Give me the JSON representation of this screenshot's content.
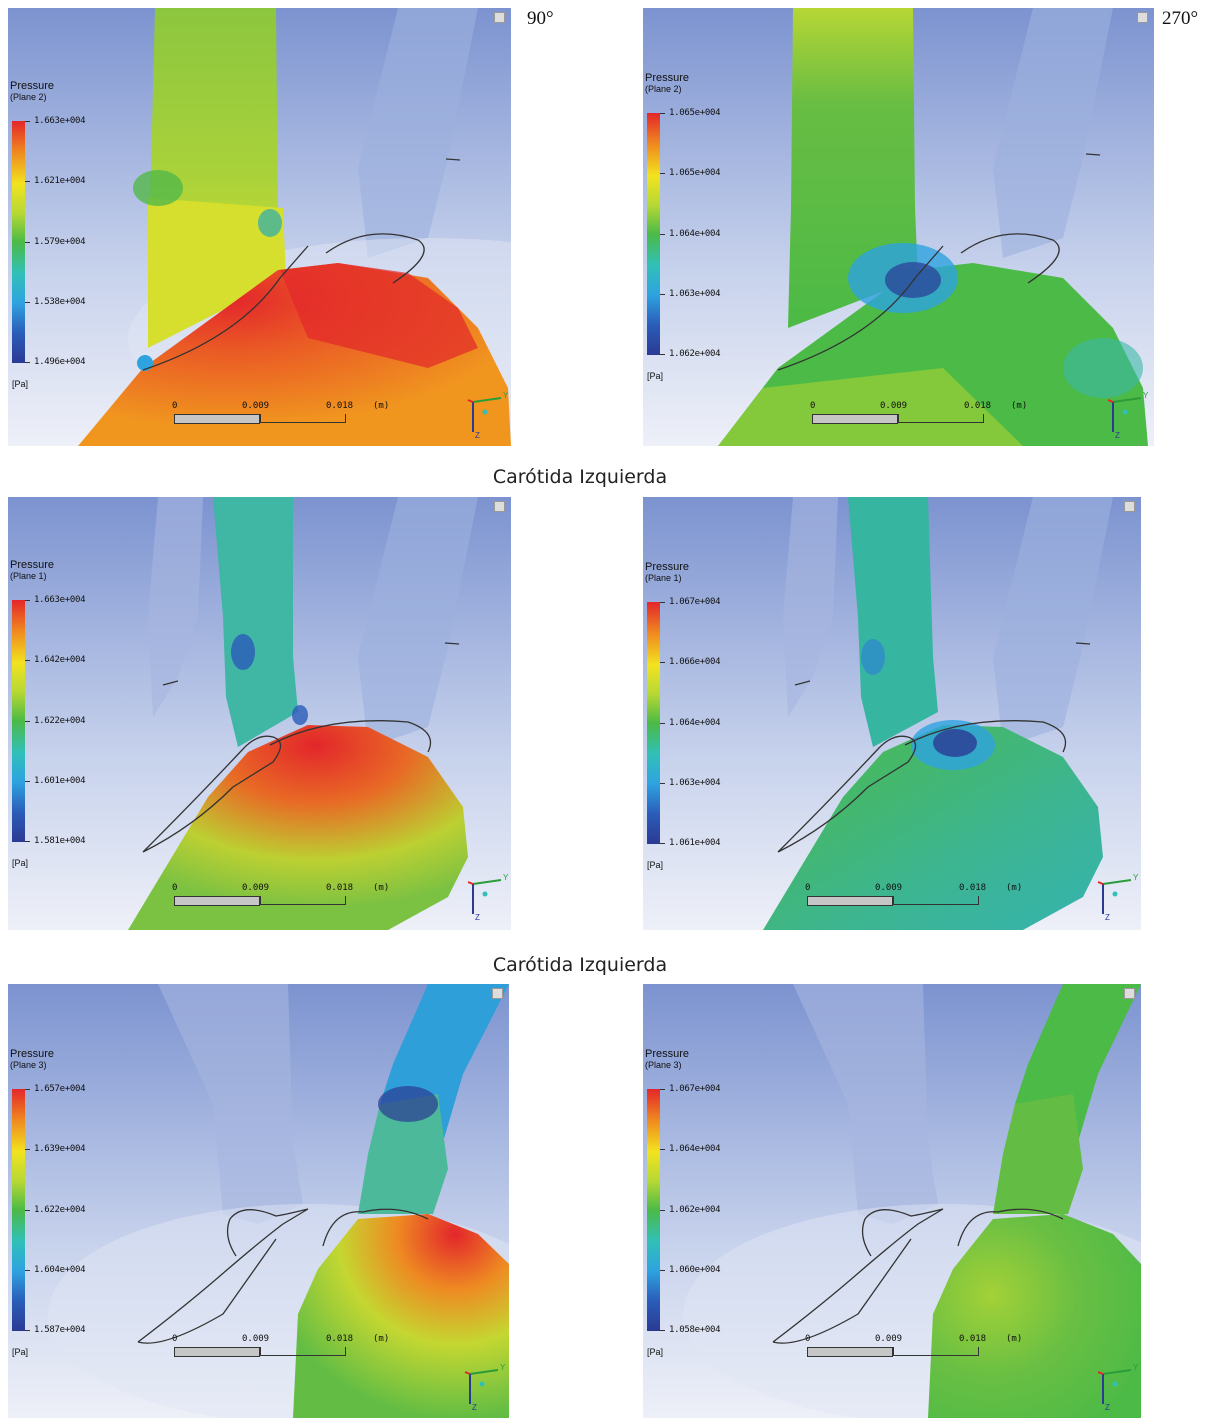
{
  "headings": {
    "angle_left": "90°",
    "angle_right": "270°"
  },
  "captions": [
    "Carótida Izquierda",
    "Carótida Izquierda"
  ],
  "legend_title": "Pressure",
  "unit": "[Pa]",
  "scale": {
    "l0": "0",
    "l1": "0.009",
    "l2": "0.018",
    "unit": "(m)"
  },
  "axis_labels": {
    "y": "Y",
    "z": "Z"
  },
  "panels": [
    {
      "plane": "(Plane  2)",
      "ticks": [
        "1.663e+004",
        "1.621e+004",
        "1.579e+004",
        "1.538e+004",
        "1.496e+004"
      ]
    },
    {
      "plane": "(Plane  2)",
      "ticks": [
        "1.065e+004",
        "1.065e+004",
        "1.064e+004",
        "1.063e+004",
        "1.062e+004"
      ]
    },
    {
      "plane": "(Plane  1)",
      "ticks": [
        "1.663e+004",
        "1.642e+004",
        "1.622e+004",
        "1.601e+004",
        "1.581e+004"
      ]
    },
    {
      "plane": "(Plane  1)",
      "ticks": [
        "1.067e+004",
        "1.066e+004",
        "1.064e+004",
        "1.063e+004",
        "1.061e+004"
      ]
    },
    {
      "plane": "(Plane  3)",
      "ticks": [
        "1.657e+004",
        "1.639e+004",
        "1.622e+004",
        "1.604e+004",
        "1.587e+004"
      ]
    },
    {
      "plane": "(Plane  3)",
      "ticks": [
        "1.067e+004",
        "1.064e+004",
        "1.062e+004",
        "1.060e+004",
        "1.058e+004"
      ]
    }
  ],
  "colors": {
    "red": "#e3262b",
    "orange": "#f08a1f",
    "yellow": "#f2e31f",
    "green": "#4cba46",
    "cyan": "#2ea3e0",
    "blue": "#2b3a93",
    "background_top": "#7c93d0",
    "background_bottom": "#eef0f8"
  }
}
